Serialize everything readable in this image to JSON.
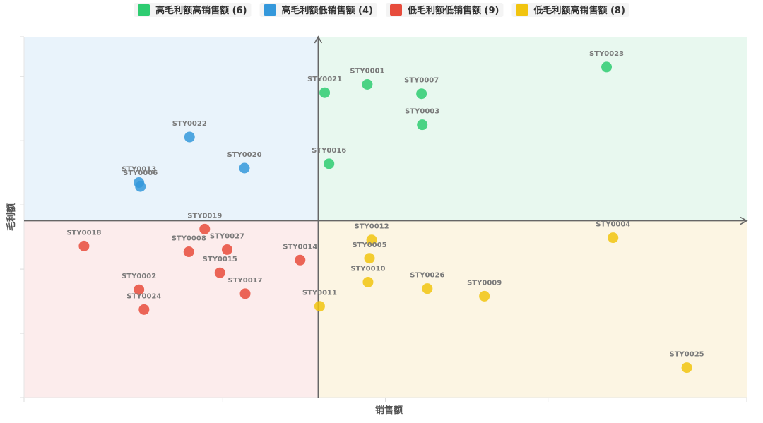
{
  "chart_data": {
    "type": "scatter",
    "title": "",
    "xlabel": "销售额",
    "ylabel": "毛利额",
    "xlim": [
      0,
      100
    ],
    "ylim": [
      0,
      100
    ],
    "x_split": 40.7,
    "y_split": 49,
    "axes_ticks_labeled": false,
    "legend_position": "top",
    "series": [
      {
        "name": "高毛利额高销售额 (6)",
        "color": "#2ecc71",
        "quadrant_fill": "#e8f8ef",
        "points": [
          {
            "label": "STY0021",
            "x": 41.6,
            "y": 84.5
          },
          {
            "label": "STY0001",
            "x": 47.5,
            "y": 86.8
          },
          {
            "label": "STY0007",
            "x": 55.0,
            "y": 84.2
          },
          {
            "label": "STY0003",
            "x": 55.1,
            "y": 75.6
          },
          {
            "label": "STY0016",
            "x": 42.2,
            "y": 64.8
          },
          {
            "label": "STY0023",
            "x": 80.6,
            "y": 91.6
          }
        ]
      },
      {
        "name": "高毛利额低销售额 (4)",
        "color": "#3498db",
        "quadrant_fill": "#e9f3fb",
        "points": [
          {
            "label": "STY0022",
            "x": 22.9,
            "y": 72.2
          },
          {
            "label": "STY0020",
            "x": 30.5,
            "y": 63.6
          },
          {
            "label": "STY0013",
            "x": 15.9,
            "y": 59.6
          },
          {
            "label": "STY0006",
            "x": 16.1,
            "y": 58.5
          }
        ]
      },
      {
        "name": "低毛利额低销售额 (9)",
        "color": "#e74c3c",
        "quadrant_fill": "#fcecec",
        "points": [
          {
            "label": "STY0018",
            "x": 8.3,
            "y": 42.0
          },
          {
            "label": "STY0019",
            "x": 25.0,
            "y": 46.7
          },
          {
            "label": "STY0008",
            "x": 22.8,
            "y": 40.4
          },
          {
            "label": "STY0027",
            "x": 28.1,
            "y": 41.0
          },
          {
            "label": "STY0015",
            "x": 27.1,
            "y": 34.6
          },
          {
            "label": "STY0014",
            "x": 38.2,
            "y": 38.1
          },
          {
            "label": "STY0017",
            "x": 30.6,
            "y": 28.8
          },
          {
            "label": "STY0002",
            "x": 15.9,
            "y": 29.9
          },
          {
            "label": "STY0024",
            "x": 16.6,
            "y": 24.4
          }
        ]
      },
      {
        "name": "低毛利额高销售额 (8)",
        "color": "#f1c40f",
        "quadrant_fill": "#fcf5e3",
        "points": [
          {
            "label": "STY0012",
            "x": 48.1,
            "y": 43.7
          },
          {
            "label": "STY0005",
            "x": 47.8,
            "y": 38.6
          },
          {
            "label": "STY0010",
            "x": 47.6,
            "y": 32.0
          },
          {
            "label": "STY0026",
            "x": 55.8,
            "y": 30.2
          },
          {
            "label": "STY0009",
            "x": 63.7,
            "y": 28.1
          },
          {
            "label": "STY0011",
            "x": 40.9,
            "y": 25.3
          },
          {
            "label": "STY0004",
            "x": 81.5,
            "y": 44.3
          },
          {
            "label": "STY0025",
            "x": 91.7,
            "y": 8.3
          }
        ]
      }
    ]
  }
}
